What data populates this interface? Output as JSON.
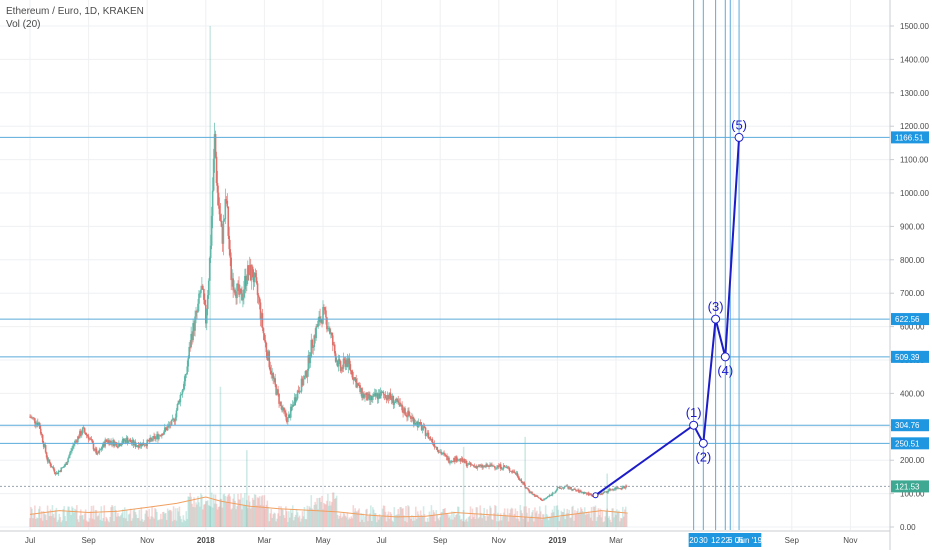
{
  "header": {
    "title": "Ethereum / Euro, 1D, KRAKEN",
    "indicator": "Vol (20)"
  },
  "chart_data": {
    "type": "candlestick",
    "symbol": "Ethereum / Euro",
    "timeframe": "1D",
    "exchange": "KRAKEN",
    "ylim": [
      0,
      1560
    ],
    "y_ticks": [
      0,
      100,
      200,
      300,
      400,
      500,
      600,
      700,
      800,
      900,
      1000,
      1100,
      1200,
      1300,
      1400,
      1500
    ],
    "y_tick_labels": [
      "0.00",
      "100.00",
      "200.00",
      "300.00",
      "400.00",
      "500.00",
      "600.00",
      "700.00",
      "800.00",
      "900.00",
      "1000.00",
      "1100.00",
      "1200.00",
      "1300.00",
      "1400.00",
      "1500.00"
    ],
    "x_ticks": [
      "Jul",
      "Sep",
      "Nov",
      "2018",
      "Mar",
      "May",
      "Jul",
      "Sep",
      "Nov",
      "2019",
      "Mar",
      "Jul",
      "Sep",
      "Nov"
    ],
    "x_tick_months": [
      0,
      2,
      4,
      6,
      8,
      10,
      12,
      14,
      16,
      18,
      20,
      24,
      26,
      28
    ],
    "highlighted_date_labels": [
      "20",
      "30",
      "12",
      "22",
      "6",
      "06",
      "Jun '19"
    ],
    "highlighted_date_months": [
      22.65,
      22.98,
      23.4,
      23.73,
      23.9,
      24.2,
      24.55
    ],
    "horizontal_levels": [
      1166.51,
      622.56,
      509.39,
      304.76,
      250.51,
      121.53
    ],
    "horizontal_level_labels": [
      "1166.51",
      "622.56",
      "509.39",
      "304.76",
      "250.51",
      "121.53"
    ],
    "current_price": 121.53,
    "price_path": [
      [
        0,
        330
      ],
      [
        0.3,
        310
      ],
      [
        0.6,
        200
      ],
      [
        0.9,
        160
      ],
      [
        1.2,
        185
      ],
      [
        1.5,
        250
      ],
      [
        1.8,
        290
      ],
      [
        2.0,
        270
      ],
      [
        2.3,
        215
      ],
      [
        2.6,
        260
      ],
      [
        3.0,
        248
      ],
      [
        3.3,
        262
      ],
      [
        3.6,
        246
      ],
      [
        4.0,
        252
      ],
      [
        4.3,
        268
      ],
      [
        4.6,
        290
      ],
      [
        4.9,
        315
      ],
      [
        5.1,
        385
      ],
      [
        5.3,
        440
      ],
      [
        5.5,
        570
      ],
      [
        5.7,
        640
      ],
      [
        5.85,
        720
      ],
      [
        6.0,
        620
      ],
      [
        6.15,
        820
      ],
      [
        6.3,
        1160
      ],
      [
        6.4,
        1000
      ],
      [
        6.55,
        860
      ],
      [
        6.7,
        980
      ],
      [
        6.85,
        760
      ],
      [
        7.0,
        720
      ],
      [
        7.2,
        680
      ],
      [
        7.4,
        760
      ],
      [
        7.6,
        760
      ],
      [
        7.8,
        680
      ],
      [
        8.0,
        560
      ],
      [
        8.3,
        440
      ],
      [
        8.6,
        350
      ],
      [
        8.8,
        320
      ],
      [
        9.1,
        400
      ],
      [
        9.4,
        450
      ],
      [
        9.6,
        540
      ],
      [
        9.8,
        600
      ],
      [
        10.0,
        640
      ],
      [
        10.2,
        600
      ],
      [
        10.4,
        520
      ],
      [
        10.6,
        470
      ],
      [
        10.8,
        500
      ],
      [
        11.0,
        460
      ],
      [
        11.3,
        400
      ],
      [
        11.6,
        380
      ],
      [
        11.9,
        395
      ],
      [
        12.2,
        395
      ],
      [
        12.5,
        370
      ],
      [
        12.8,
        345
      ],
      [
        13.1,
        320
      ],
      [
        13.4,
        295
      ],
      [
        13.7,
        260
      ],
      [
        14.0,
        225
      ],
      [
        14.3,
        200
      ],
      [
        14.6,
        205
      ],
      [
        15.0,
        185
      ],
      [
        15.4,
        180
      ],
      [
        15.8,
        183
      ],
      [
        16.2,
        180
      ],
      [
        16.6,
        160
      ],
      [
        16.9,
        120
      ],
      [
        17.2,
        95
      ],
      [
        17.5,
        80
      ],
      [
        17.8,
        98
      ],
      [
        18.0,
        115
      ],
      [
        18.3,
        120
      ],
      [
        18.6,
        110
      ],
      [
        18.9,
        103
      ],
      [
        19.2,
        95
      ],
      [
        19.5,
        100
      ],
      [
        19.8,
        112
      ],
      [
        20.1,
        118
      ],
      [
        20.4,
        121.53
      ]
    ],
    "volume_ma_path": [
      [
        0,
        40
      ],
      [
        1,
        52
      ],
      [
        2,
        46
      ],
      [
        3,
        50
      ],
      [
        4,
        62
      ],
      [
        5,
        75
      ],
      [
        6,
        95
      ],
      [
        6.5,
        82
      ],
      [
        7.5,
        66
      ],
      [
        8.5,
        58
      ],
      [
        9.5,
        53
      ],
      [
        10.5,
        48
      ],
      [
        11.5,
        38
      ],
      [
        12.5,
        32
      ],
      [
        13.5,
        34
      ],
      [
        14.5,
        46
      ],
      [
        15.5,
        40
      ],
      [
        16.5,
        34
      ],
      [
        17.5,
        28
      ],
      [
        18.5,
        40
      ],
      [
        19.5,
        52
      ],
      [
        20.4,
        44
      ]
    ],
    "volume_spikes": [
      [
        6.15,
        1500
      ],
      [
        6.5,
        420
      ],
      [
        7.4,
        230
      ],
      [
        14.8,
        240
      ],
      [
        16.9,
        270
      ],
      [
        19.7,
        160
      ]
    ],
    "elliott_wave": {
      "points": [
        {
          "month": 19.3,
          "price": 95,
          "label": ""
        },
        {
          "month": 22.65,
          "price": 304.76,
          "label": "(1)"
        },
        {
          "month": 22.98,
          "price": 250.51,
          "label": "(2)"
        },
        {
          "month": 23.4,
          "price": 622.56,
          "label": "(3)"
        },
        {
          "month": 23.73,
          "price": 509.39,
          "label": "(4)"
        },
        {
          "month": 24.2,
          "price": 1166.51,
          "label": "(5)"
        }
      ],
      "color": "#1c1cc8"
    },
    "colors": {
      "up": "#5fb8a8",
      "down": "#e0706a",
      "wave": "#1c1cc8",
      "level_line": "#5aabdb",
      "tag": "#1f96e0",
      "current_price_tag": "#3ea892",
      "volume_ma": "#f0a060",
      "grid": "#eef0f3",
      "axis_text": "#4a4a4a"
    },
    "grid": true,
    "legend": "none"
  }
}
